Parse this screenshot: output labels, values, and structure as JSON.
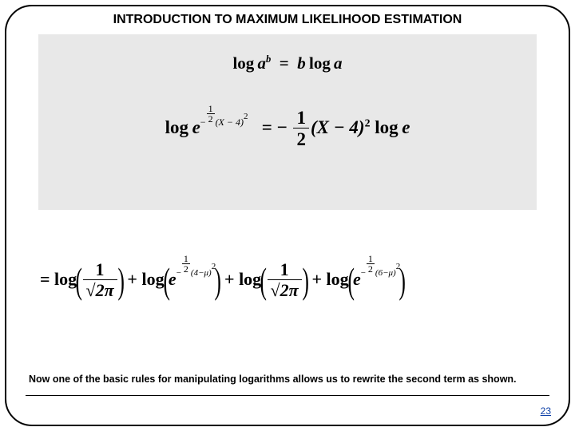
{
  "title": "INTRODUCTION TO MAXIMUM LIKELIHOOD ESTIMATION",
  "rule": {
    "lhs_log": "log",
    "lhs_base": "a",
    "lhs_exp": "b",
    "rhs_coeff": "b",
    "rhs_log": "log",
    "rhs_arg": "a"
  },
  "applied": {
    "log": "log",
    "e": "e",
    "exp_prefix_minus": "−",
    "exp_frac_num": "1",
    "exp_frac_den": "2",
    "exp_rest": "(X − 4)",
    "exp_sq": "2",
    "eq": "= −",
    "half_num": "1",
    "half_den": "2",
    "rhs_mid": "(X − 4)",
    "rhs_sq": "2",
    "rhs_tail_log": "log",
    "rhs_tail_e": "e"
  },
  "bottom": {
    "eq": "=",
    "log": "log",
    "plus": "+",
    "frac1_num": "1",
    "sqrt": "√",
    "two_pi": "2π",
    "e": "e",
    "exp_minus": "−",
    "exp_frac_num": "1",
    "exp_frac_den": "2",
    "exp_a": "(4−μ)",
    "exp_b": "(6−μ)",
    "exp_sq": "2"
  },
  "caption": "Now one of the basic rules for manipulating logarithms allows us to rewrite the second term as shown.",
  "page_number": "23",
  "colors": {
    "frame_border": "#000000",
    "background": "#ffffff",
    "gray_box": "#e8e8e8",
    "text": "#000000",
    "page_link": "#0b3ea7"
  }
}
